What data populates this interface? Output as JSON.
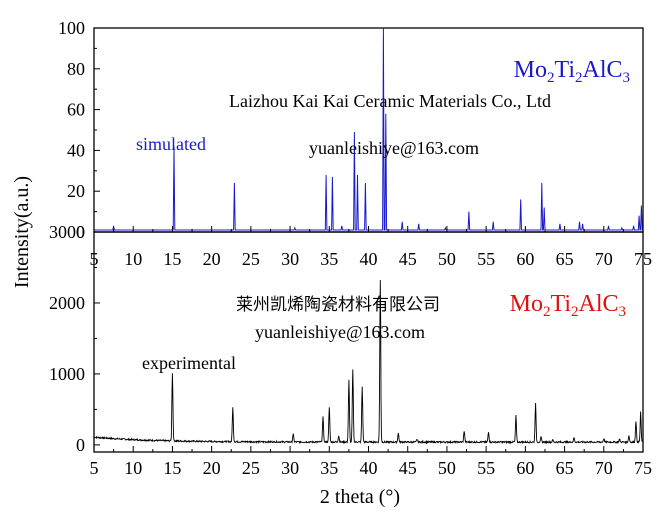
{
  "colors": {
    "simulated": "#1a1acc",
    "experimental": "#000000",
    "label_top": "#1a1acc",
    "label_bottom": "#e01010",
    "axis": "#000000"
  },
  "shared": {
    "ylabel": "Intensity(a.u.)",
    "xlabel": "2 theta (°)",
    "xticks": [
      "5",
      "10",
      "15",
      "20",
      "25",
      "30",
      "35",
      "40",
      "45",
      "50",
      "55",
      "60",
      "65",
      "70",
      "75"
    ]
  },
  "chart_data": [
    {
      "type": "line",
      "name": "simulated",
      "title": "Mo2Ti2AlC3",
      "formula": {
        "base1": "Mo",
        "sub1": "2",
        "base2": "Ti",
        "sub2": "2",
        "base3": "AlC",
        "sub3": "3"
      },
      "annotation": "simulated",
      "watermark_company": "Laizhou Kai Kai Ceramic Materials Co., Ltd",
      "watermark_email": "yuanleishiye@163.com",
      "xlim": [
        5,
        75
      ],
      "ylim": [
        0,
        100
      ],
      "yticks": [
        "0",
        "20",
        "40",
        "60",
        "80",
        "100"
      ],
      "baseline": 1,
      "peaks": [
        [
          7.5,
          3
        ],
        [
          15.2,
          42
        ],
        [
          22.9,
          24
        ],
        [
          30.6,
          2
        ],
        [
          34.6,
          28
        ],
        [
          35.4,
          27
        ],
        [
          36.6,
          3
        ],
        [
          38.2,
          49
        ],
        [
          38.6,
          28
        ],
        [
          39.6,
          24
        ],
        [
          41.9,
          100
        ],
        [
          42.2,
          58
        ],
        [
          44.3,
          5
        ],
        [
          46.4,
          4
        ],
        [
          49.8,
          2
        ],
        [
          52.8,
          10
        ],
        [
          55.9,
          5
        ],
        [
          59.4,
          16
        ],
        [
          62.1,
          24
        ],
        [
          62.4,
          12
        ],
        [
          64.4,
          4
        ],
        [
          66.9,
          5
        ],
        [
          67.3,
          4
        ],
        [
          70.6,
          3
        ],
        [
          72.3,
          2
        ],
        [
          73.8,
          3
        ],
        [
          74.5,
          8
        ],
        [
          74.8,
          13
        ]
      ]
    },
    {
      "type": "line",
      "name": "experimental",
      "title": "Mo2Ti2AlC3",
      "formula": {
        "base1": "Mo",
        "sub1": "2",
        "base2": "Ti",
        "sub2": "2",
        "base3": "AlC",
        "sub3": "3"
      },
      "annotation": "experimental",
      "watermark_company": "莱州凯烯陶瓷材料有限公司",
      "watermark_email": "yuanleishiye@163.com",
      "xlim": [
        5,
        75
      ],
      "ylim": [
        -100,
        3000
      ],
      "yticks": [
        "0",
        "1000",
        "2000",
        "3000"
      ],
      "ytick_values": [
        0,
        1000,
        2000,
        3000
      ],
      "peaks": [
        [
          15.0,
          960
        ],
        [
          22.7,
          480
        ],
        [
          30.4,
          110
        ],
        [
          34.2,
          350
        ],
        [
          35.0,
          490
        ],
        [
          36.2,
          90
        ],
        [
          37.5,
          870
        ],
        [
          38.0,
          1020
        ],
        [
          39.2,
          780
        ],
        [
          41.5,
          2280
        ],
        [
          43.8,
          130
        ],
        [
          46.2,
          40
        ],
        [
          52.2,
          160
        ],
        [
          55.3,
          140
        ],
        [
          58.8,
          380
        ],
        [
          61.3,
          560
        ],
        [
          62.0,
          70
        ],
        [
          63.5,
          30
        ],
        [
          66.2,
          60
        ],
        [
          70.0,
          50
        ],
        [
          72.0,
          40
        ],
        [
          73.2,
          90
        ],
        [
          74.1,
          300
        ],
        [
          74.7,
          420
        ]
      ]
    }
  ]
}
